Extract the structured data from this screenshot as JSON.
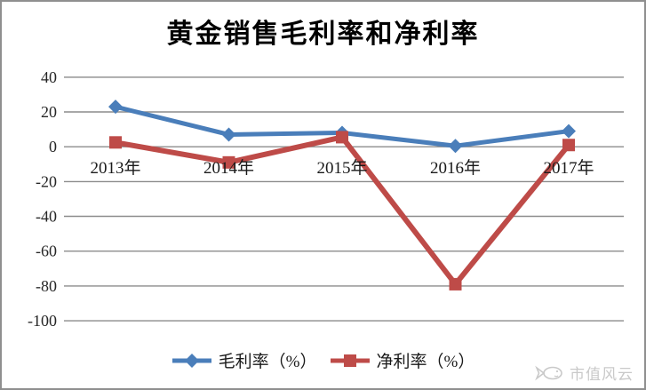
{
  "title": "黄金销售毛利率和净利率",
  "watermark": {
    "text": "市值风云",
    "icon": "fish-icon"
  },
  "colors": {
    "gross_margin": "#4A7EBA",
    "net_margin": "#BE4B48",
    "gridline": "#8C8C8C",
    "frame_border": "#8F8F8F",
    "axis_text": "#262626",
    "watermark": "#C9C9C9",
    "title_text": "#000000"
  },
  "chart_data": {
    "type": "line",
    "title": "黄金销售毛利率和净利率",
    "categories": [
      "2013年",
      "2014年",
      "2015年",
      "2016年",
      "2017年"
    ],
    "series": [
      {
        "name": "毛利率（%）",
        "color": "#4A7EBA",
        "marker": "diamond",
        "values": [
          23,
          7,
          8,
          0.5,
          9
        ]
      },
      {
        "name": "净利率（%）",
        "color": "#BE4B48",
        "marker": "square",
        "values": [
          2.5,
          -9,
          5.5,
          -79,
          1
        ]
      }
    ],
    "yticks": [
      40,
      20,
      0,
      -20,
      -40,
      -60,
      -80,
      -100
    ],
    "ylim": [
      -100,
      40
    ],
    "xlabel": "",
    "ylabel": "",
    "grid": true,
    "legend_position": "bottom"
  }
}
